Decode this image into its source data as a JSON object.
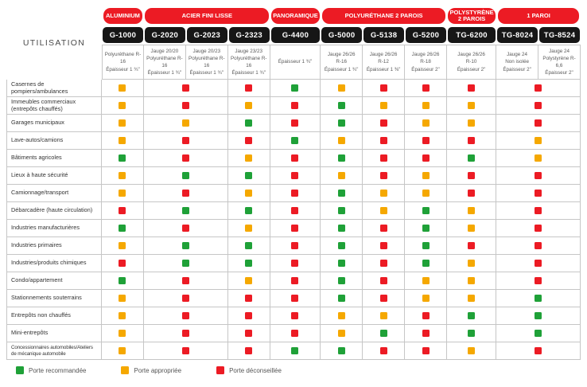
{
  "colors": {
    "green": "#1FA138",
    "yellow": "#F5A800",
    "red": "#EC1B24",
    "pill_red": "#EC1B24",
    "pill_black": "#161616",
    "grid_line": "#c6c6c6"
  },
  "header": {
    "utilisation_label": "UTILISATION",
    "categories": [
      {
        "label": "ALUMINIUM",
        "span": 1
      },
      {
        "label": "ACIER FINI LISSE",
        "span": 3
      },
      {
        "label": "PANORAMIQUE",
        "span": 1
      },
      {
        "label": "POLYURÉTHANE 2 PAROIS",
        "span": 3
      },
      {
        "label": "POLYSTYRÈNE 2 PAROIS",
        "span": 1
      },
      {
        "label": "1 PAROI",
        "span": 2
      }
    ],
    "models": [
      "G-1000",
      "G-2020",
      "G-2023",
      "G-2323",
      "G-4400",
      "G-5000",
      "G-5138",
      "G-5200",
      "TG-6200",
      "TG-8024",
      "TG-8524"
    ],
    "specs": [
      "Polyuréthane R-16\nÉpaisseur 1 ¾\"",
      "Jauge 20/20\nPolyuréthane R-16\nÉpaisseur 1 ¾\"",
      "Jauge 20/23\nPolyuréthane R-16\nÉpaisseur 1 ¾\"",
      "Jauge 23/23\nPolyuréthane R-16\nÉpaisseur 1 ¾\"",
      "Épaisseur 1 ¾\"",
      "Jauge 26/26\nR-16\nÉpaisseur 1 ¾\"",
      "Jauge 26/26\nR-12\nÉpaisseur 1 ⅜\"",
      "Jauge 26/26\nR-18\nÉpaisseur 2\"",
      "Jauge 26/26\nR-10\nÉpaisseur 2\"",
      "Jauge 24\nNon isolée\nÉpaisseur 2\"",
      "Jauge 24\nPolystyrène R-6,6\nÉpaisseur 2\""
    ]
  },
  "matrix": {
    "cell_spans": [
      1,
      2,
      1,
      1,
      1,
      1,
      1,
      1,
      2
    ],
    "rows": [
      {
        "label": "Casernes de pompiers/ambulances",
        "cells": [
          "yellow",
          "red",
          "red",
          "green",
          "yellow",
          "red",
          "red",
          "red",
          "red"
        ]
      },
      {
        "label": "Immeubles commerciaux (entrepôts chauffés)",
        "cells": [
          "yellow",
          "red",
          "yellow",
          "red",
          "green",
          "yellow",
          "yellow",
          "yellow",
          "red"
        ]
      },
      {
        "label": "Garages municipaux",
        "cells": [
          "yellow",
          "yellow",
          "green",
          "red",
          "green",
          "red",
          "yellow",
          "yellow",
          "red"
        ]
      },
      {
        "label": "Lave-autos/camions",
        "cells": [
          "yellow",
          "red",
          "red",
          "green",
          "yellow",
          "red",
          "red",
          "red",
          "yellow"
        ]
      },
      {
        "label": "Bâtiments agricoles",
        "cells": [
          "green",
          "red",
          "yellow",
          "red",
          "green",
          "red",
          "red",
          "green",
          "yellow"
        ]
      },
      {
        "label": "Lieux à haute sécurité",
        "cells": [
          "yellow",
          "green",
          "green",
          "red",
          "yellow",
          "red",
          "yellow",
          "red",
          "red"
        ]
      },
      {
        "label": "Camionnage/transport",
        "cells": [
          "yellow",
          "red",
          "yellow",
          "red",
          "green",
          "yellow",
          "yellow",
          "red",
          "red"
        ]
      },
      {
        "label": "Débarcadère (haute circulation)",
        "cells": [
          "red",
          "green",
          "green",
          "red",
          "green",
          "yellow",
          "green",
          "yellow",
          "red"
        ]
      },
      {
        "label": "Industries manufacturières",
        "cells": [
          "green",
          "red",
          "yellow",
          "red",
          "green",
          "red",
          "green",
          "yellow",
          "red"
        ]
      },
      {
        "label": "Industries primaires",
        "cells": [
          "yellow",
          "green",
          "green",
          "red",
          "green",
          "red",
          "green",
          "red",
          "red"
        ]
      },
      {
        "label": "Industries/produits chimiques",
        "cells": [
          "red",
          "green",
          "green",
          "red",
          "green",
          "red",
          "green",
          "yellow",
          "red"
        ]
      },
      {
        "label": "Condo/appartement",
        "cells": [
          "green",
          "red",
          "yellow",
          "red",
          "green",
          "red",
          "yellow",
          "yellow",
          "red"
        ]
      },
      {
        "label": "Stationnements souterrains",
        "cells": [
          "yellow",
          "red",
          "red",
          "red",
          "green",
          "red",
          "yellow",
          "yellow",
          "green"
        ]
      },
      {
        "label": "Entrepôts non chauffés",
        "cells": [
          "yellow",
          "red",
          "red",
          "red",
          "yellow",
          "yellow",
          "red",
          "green",
          "green"
        ]
      },
      {
        "label": "Mini-entrepôts",
        "cells": [
          "yellow",
          "red",
          "red",
          "red",
          "yellow",
          "green",
          "red",
          "green",
          "green"
        ]
      },
      {
        "label": "Concessionnaires automobiles/Ateliers de mécanique automobile",
        "cells": [
          "yellow",
          "red",
          "red",
          "green",
          "green",
          "red",
          "red",
          "yellow",
          "red"
        ]
      }
    ]
  },
  "legend": [
    {
      "label": "Porte recommandée",
      "color": "green"
    },
    {
      "label": "Porte appropriée",
      "color": "yellow"
    },
    {
      "label": "Porte déconseillée",
      "color": "red"
    }
  ],
  "chart_data": {
    "type": "table",
    "title": "",
    "rating_key": {
      "G": "Porte recommandée (vert)",
      "Y": "Porte appropriée (jaune)",
      "R": "Porte déconseillée (rouge)"
    },
    "column_groups": {
      "ALUMINIUM": [
        "G-1000"
      ],
      "ACIER FINI LISSE": [
        "G-2020",
        "G-2023",
        "G-2323"
      ],
      "PANORAMIQUE": [
        "G-4400"
      ],
      "POLYURÉTHANE 2 PAROIS": [
        "G-5000",
        "G-5138",
        "G-5200"
      ],
      "POLYSTYRÈNE 2 PAROIS": [
        "TG-6200"
      ],
      "1 PAROI": [
        "TG-8024",
        "TG-8524"
      ]
    },
    "columns": [
      "G-1000",
      "G-2020",
      "G-2023",
      "G-2323",
      "G-4400",
      "G-5000",
      "G-5138",
      "G-5200",
      "TG-6200",
      "TG-8024",
      "TG-8524"
    ],
    "rows": [
      {
        "label": "Casernes de pompiers/ambulances",
        "ratings": [
          "Y",
          "R",
          "R",
          "R",
          "G",
          "Y",
          "R",
          "R",
          "R",
          "R",
          "R"
        ]
      },
      {
        "label": "Immeubles commerciaux (entrepôts chauffés)",
        "ratings": [
          "Y",
          "R",
          "R",
          "Y",
          "R",
          "G",
          "Y",
          "Y",
          "Y",
          "R",
          "R"
        ]
      },
      {
        "label": "Garages municipaux",
        "ratings": [
          "Y",
          "Y",
          "Y",
          "G",
          "R",
          "G",
          "R",
          "Y",
          "Y",
          "R",
          "R"
        ]
      },
      {
        "label": "Lave-autos/camions",
        "ratings": [
          "Y",
          "R",
          "R",
          "R",
          "G",
          "Y",
          "R",
          "R",
          "R",
          "Y",
          "Y"
        ]
      },
      {
        "label": "Bâtiments agricoles",
        "ratings": [
          "G",
          "R",
          "R",
          "Y",
          "R",
          "G",
          "R",
          "R",
          "G",
          "Y",
          "Y"
        ]
      },
      {
        "label": "Lieux à haute sécurité",
        "ratings": [
          "Y",
          "G",
          "G",
          "G",
          "R",
          "Y",
          "R",
          "Y",
          "R",
          "R",
          "R"
        ]
      },
      {
        "label": "Camionnage/transport",
        "ratings": [
          "Y",
          "R",
          "R",
          "Y",
          "R",
          "G",
          "Y",
          "Y",
          "R",
          "R",
          "R"
        ]
      },
      {
        "label": "Débarcadère (haute circulation)",
        "ratings": [
          "R",
          "G",
          "G",
          "G",
          "R",
          "G",
          "Y",
          "G",
          "Y",
          "R",
          "R"
        ]
      },
      {
        "label": "Industries manufacturières",
        "ratings": [
          "G",
          "R",
          "R",
          "Y",
          "R",
          "G",
          "R",
          "G",
          "Y",
          "R",
          "R"
        ]
      },
      {
        "label": "Industries primaires",
        "ratings": [
          "Y",
          "G",
          "G",
          "G",
          "R",
          "G",
          "R",
          "G",
          "R",
          "R",
          "R"
        ]
      },
      {
        "label": "Industries/produits chimiques",
        "ratings": [
          "R",
          "G",
          "G",
          "G",
          "R",
          "G",
          "R",
          "G",
          "Y",
          "R",
          "R"
        ]
      },
      {
        "label": "Condo/appartement",
        "ratings": [
          "G",
          "R",
          "R",
          "Y",
          "R",
          "G",
          "R",
          "Y",
          "Y",
          "R",
          "R"
        ]
      },
      {
        "label": "Stationnements souterrains",
        "ratings": [
          "Y",
          "R",
          "R",
          "R",
          "R",
          "G",
          "R",
          "Y",
          "Y",
          "G",
          "G"
        ]
      },
      {
        "label": "Entrepôts non chauffés",
        "ratings": [
          "Y",
          "R",
          "R",
          "R",
          "R",
          "Y",
          "Y",
          "R",
          "G",
          "G",
          "G"
        ]
      },
      {
        "label": "Mini-entrepôts",
        "ratings": [
          "Y",
          "R",
          "R",
          "R",
          "R",
          "Y",
          "G",
          "R",
          "G",
          "G",
          "G"
        ]
      },
      {
        "label": "Concessionnaires automobiles/Ateliers de mécanique automobile",
        "ratings": [
          "Y",
          "R",
          "R",
          "R",
          "G",
          "G",
          "R",
          "R",
          "Y",
          "R",
          "R"
        ]
      }
    ]
  }
}
